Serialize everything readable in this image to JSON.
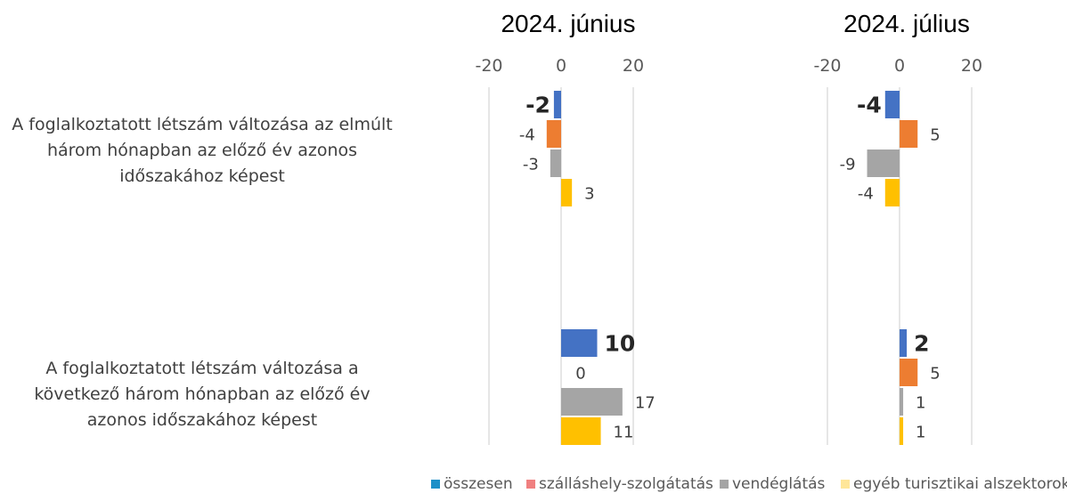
{
  "chart_data": {
    "type": "bar",
    "orientation": "horizontal",
    "categories": [
      [
        "A foglalkoztatott létszám változása az elmúlt",
        "három hónapban az előző év azonos",
        "időszakához képest"
      ],
      [
        "A foglalkoztatott létszám változása a",
        "következő három hónapban az előző év",
        "azonos időszakához képest"
      ]
    ],
    "xlim": [
      -20,
      20
    ],
    "xticks": [
      "-20",
      "0",
      "20"
    ],
    "grid": true,
    "legend_position": "bottom-right",
    "series": [
      {
        "name": "összesen",
        "color": "#4472C4",
        "legend_color": "#1E90C8"
      },
      {
        "name": "szálláshely-szolgátatás",
        "color": "#ED7D31",
        "legend_color": "#F08080"
      },
      {
        "name": "vendéglátás",
        "color": "#A5A5A5",
        "legend_color": "#A5A5A5"
      },
      {
        "name": "egyéb turisztikai alszektorok",
        "color": "#FFC000",
        "legend_color": "#FFE699"
      }
    ],
    "panels": [
      {
        "title": "2024. június",
        "values": [
          [
            -2,
            -4,
            -3,
            3
          ],
          [
            10,
            0,
            17,
            11
          ]
        ]
      },
      {
        "title": "2024. július",
        "values": [
          [
            -4,
            5,
            -9,
            -4
          ],
          [
            2,
            5,
            1,
            1
          ]
        ]
      }
    ]
  }
}
